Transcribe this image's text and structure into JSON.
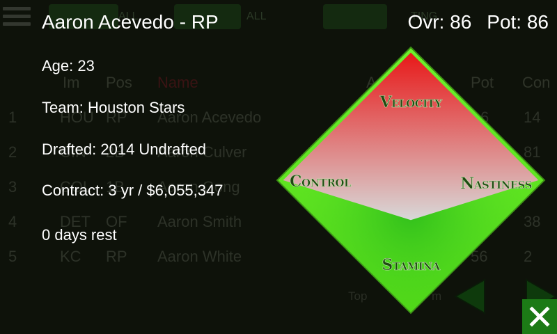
{
  "background": {
    "top_buttons": [
      "ALL",
      "ALL",
      "TING"
    ],
    "table_headers": [
      "Im",
      "Pos",
      "Name",
      "A",
      "Pot",
      "Con"
    ],
    "rows": [
      {
        "num": "1",
        "team": "HOU",
        "pos": "RP",
        "name": "Aaron Acevedo",
        "pot": "6",
        "con": "14"
      },
      {
        "num": "2",
        "team": "CIN",
        "pos": "2B",
        "name": "Aaron Culver",
        "pot": "",
        "con": "81"
      },
      {
        "num": "3",
        "team": "COL",
        "pos": "1B",
        "name": "Aaron Gong",
        "pot": "",
        "con": ""
      },
      {
        "num": "4",
        "team": "DET",
        "pos": "OF",
        "name": "Aaron Smith",
        "pot": "",
        "con": "38"
      },
      {
        "num": "5",
        "team": "KC",
        "pos": "RP",
        "name": "Aaron White",
        "pot": "56",
        "con": "2"
      }
    ],
    "footer_labels": [
      "Top",
      "m"
    ]
  },
  "player": {
    "title": "Aaron Acevedo - RP",
    "ovr": "Ovr: 86",
    "pot": "Pot: 86",
    "age": "Age: 23",
    "team": "Team: Houston Stars",
    "drafted": "Drafted: 2014 Undrafted",
    "contract": "Contract: 3 yr / $6,055,347",
    "rest": "0 days rest"
  },
  "chart_data": {
    "type": "radar",
    "axes": [
      "Velocity",
      "Nastiness",
      "Stamina",
      "Control"
    ],
    "values": [
      0.96,
      0.96,
      0.3,
      0.96
    ],
    "range": [
      0,
      1
    ],
    "colors": {
      "frame": "#5de01e",
      "fill_top": "#e81818",
      "fill_bottom": "#d8d8d8",
      "label": "#1f4a12"
    }
  },
  "close": {
    "label": "X",
    "icon": "close-icon"
  }
}
